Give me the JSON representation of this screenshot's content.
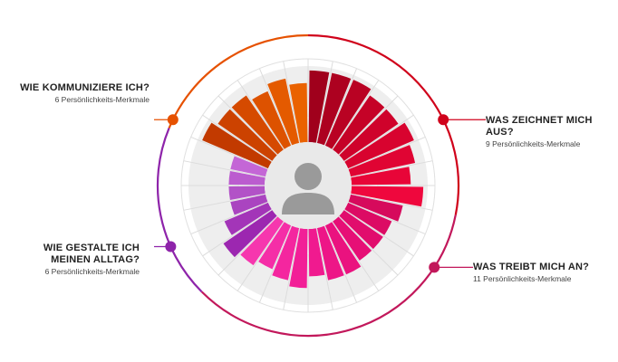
{
  "chart_data": {
    "type": "polar-bar",
    "center_icon": "user-avatar-icon",
    "segments": [
      {
        "key": "zeichnet",
        "title": "WAS ZEICHNET MICH AUS?",
        "subtitle": "9 Persönlichkeits-Merkmale",
        "count": 9,
        "color": "#d0021b",
        "bar_colors": [
          "#a0001c",
          "#ad0120",
          "#b90223",
          "#c50227",
          "#cf022b",
          "#d8032f",
          "#e00433",
          "#e80538",
          "#ef073d"
        ],
        "values": [
          0.86,
          0.86,
          0.86,
          0.79,
          0.79,
          0.86,
          0.79,
          0.71,
          0.86
        ]
      },
      {
        "key": "treibt",
        "title": "WAS TREIBT MICH AN?",
        "subtitle": "11 Persönlichkeits-Merkmale",
        "count": 11,
        "color": "#c2185b",
        "bar_colors": [
          "#d60a5c",
          "#dc0b64",
          "#e10d6d",
          "#e60f76",
          "#ea127f",
          "#ed1687",
          "#f01a8f",
          "#f21f97",
          "#f4269f",
          "#f52ea7",
          "#f637ae"
        ],
        "values": [
          0.64,
          0.57,
          0.57,
          0.57,
          0.64,
          0.64,
          0.57,
          0.71,
          0.64,
          0.57,
          0.64
        ]
      },
      {
        "key": "alltag",
        "title": "WIE GESTALTE ICH MEINEN ALLTAG?",
        "subtitle": "6 Persönlichkeits-Merkmale",
        "count": 6,
        "color": "#8e24aa",
        "bar_colors": [
          "#9c27b0",
          "#a335b8",
          "#aa44c0",
          "#b252c7",
          "#bb5ccf",
          "#c466d6"
        ],
        "values": [
          0.71,
          0.57,
          0.43,
          0.43,
          0.43,
          0.43
        ]
      },
      {
        "key": "kommuniziere",
        "title": "WIE KOMMUNIZIERE ICH?",
        "subtitle": "6 Persönlichkeits-Merkmale",
        "count": 6,
        "color": "#e65100",
        "bar_colors": [
          "#c23a00",
          "#cc4200",
          "#d54a00",
          "#dd5200",
          "#e45a00",
          "#ea6200"
        ],
        "values": [
          0.86,
          0.79,
          0.79,
          0.71,
          0.79,
          0.71
        ]
      }
    ]
  }
}
